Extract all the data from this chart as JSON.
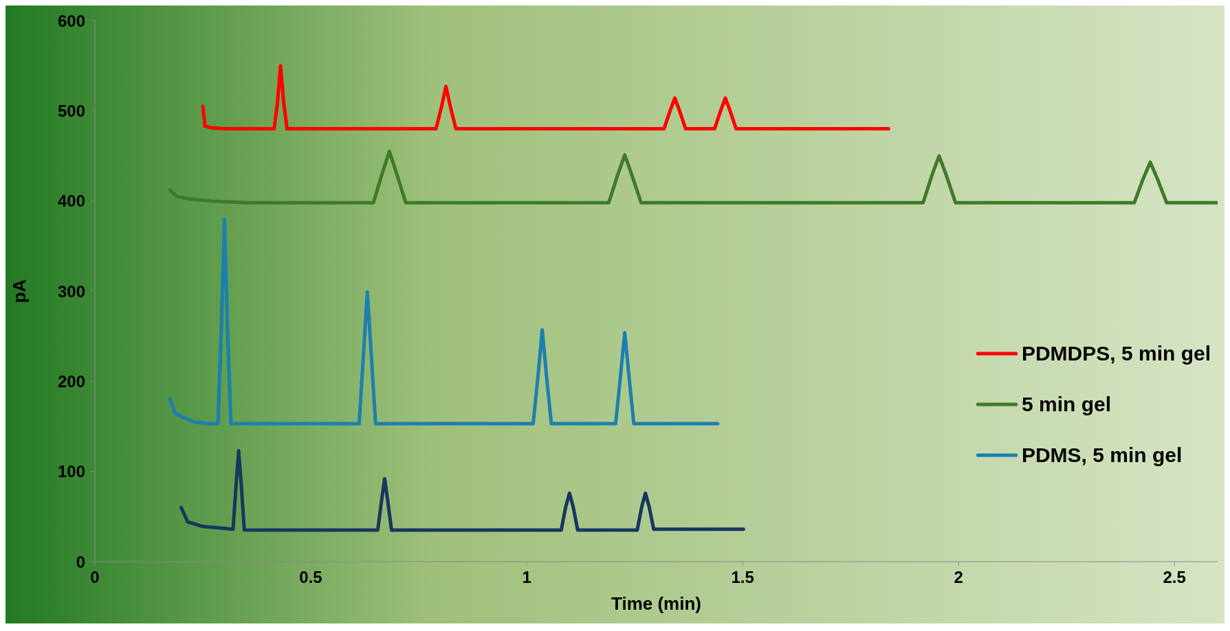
{
  "chart_data": {
    "type": "line",
    "xlabel": "Time (min)",
    "ylabel": "pA",
    "xlim": [
      0,
      2.6
    ],
    "xticks": [
      0,
      0.5,
      1,
      1.5,
      2,
      2.5
    ],
    "ylim": [
      0,
      600
    ],
    "yticks": [
      0,
      100,
      200,
      300,
      400,
      500,
      600
    ],
    "legend": "right",
    "series": [
      {
        "name": "PDMDPS, 5 min gel",
        "color": "#ff0000",
        "x": [
          0.25,
          0.255,
          0.27,
          0.3,
          0.415,
          0.423,
          0.43,
          0.437,
          0.445,
          0.79,
          0.803,
          0.813,
          0.823,
          0.836,
          1.318,
          1.332,
          1.343,
          1.354,
          1.368,
          1.435,
          1.449,
          1.46,
          1.471,
          1.485,
          1.838
        ],
        "values": [
          505,
          483,
          481,
          480,
          480,
          510,
          550,
          510,
          480,
          480,
          505,
          527,
          505,
          480,
          480,
          500,
          514,
          500,
          480,
          480,
          500,
          514,
          500,
          480,
          480
        ]
      },
      {
        "name": "5 min gel",
        "color": "#3e7a2a",
        "x": [
          0.174,
          0.19,
          0.22,
          0.27,
          0.35,
          0.645,
          0.665,
          0.682,
          0.699,
          0.72,
          1.19,
          1.21,
          1.227,
          1.244,
          1.265,
          1.918,
          1.938,
          1.955,
          1.972,
          1.993,
          2.407,
          2.427,
          2.444,
          2.461,
          2.482,
          2.6
        ],
        "values": [
          412,
          405,
          402,
          400,
          398,
          398,
          430,
          455,
          430,
          398,
          398,
          428,
          451,
          428,
          398,
          398,
          428,
          450,
          428,
          398,
          398,
          424,
          443,
          424,
          398,
          398
        ]
      },
      {
        "name": "PDMS, 5 min gel",
        "color": "#1b7fb0",
        "x": [
          0.174,
          0.185,
          0.2,
          0.23,
          0.26,
          0.285,
          0.293,
          0.3,
          0.307,
          0.315,
          0.612,
          0.622,
          0.631,
          0.64,
          0.65,
          1.015,
          1.026,
          1.036,
          1.046,
          1.057,
          1.206,
          1.217,
          1.227,
          1.237,
          1.248,
          1.442
        ],
        "values": [
          180,
          165,
          161,
          155,
          153,
          153,
          260,
          380,
          260,
          153,
          153,
          230,
          299,
          230,
          153,
          153,
          205,
          257,
          205,
          153,
          153,
          205,
          254,
          205,
          153,
          153
        ]
      },
      {
        "color": "#17375e",
        "x": [
          0.2,
          0.215,
          0.23,
          0.25,
          0.3,
          0.32,
          0.327,
          0.333,
          0.339,
          0.346,
          0.655,
          0.664,
          0.671,
          0.678,
          0.687,
          1.08,
          1.09,
          1.099,
          1.108,
          1.118,
          1.256,
          1.266,
          1.275,
          1.284,
          1.294,
          1.502
        ],
        "values": [
          60,
          44,
          42,
          39,
          37,
          36,
          85,
          123,
          85,
          35,
          35,
          68,
          92,
          68,
          35,
          35,
          60,
          76,
          60,
          35,
          35,
          60,
          76,
          60,
          36,
          36
        ]
      }
    ]
  }
}
